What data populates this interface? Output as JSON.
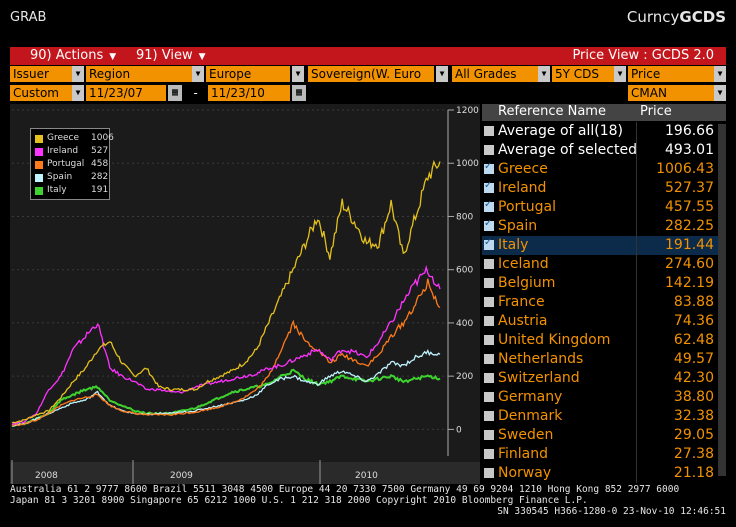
{
  "titlebar": {
    "left": "GRAB",
    "right_prefix": "Curncy",
    "right_brand": "GCDS"
  },
  "redbar": {
    "actions": "90) Actions",
    "view": "91) View",
    "price_view": "Price View : GCDS 2.0"
  },
  "filters": {
    "issuer": "Issuer",
    "region": "Region",
    "europe": "Europe",
    "sovereign": "Sovereign(W. Euro",
    "grades": "All Grades",
    "tenor": "5Y CDS",
    "price": "Price",
    "custom": "Custom",
    "date_from": "11/23/07",
    "dash": "-",
    "date_to": "11/23/10",
    "source": "CMAN"
  },
  "legend": [
    {
      "name": "Greece",
      "value": "1006",
      "color": "#e3c01c"
    },
    {
      "name": "Ireland",
      "value": "527",
      "color": "#ff33ff"
    },
    {
      "name": "Portugal",
      "value": "458",
      "color": "#ff7a1a"
    },
    {
      "name": "Spain",
      "value": "282",
      "color": "#bff4ff"
    },
    {
      "name": "Italy",
      "value": "191",
      "color": "#3ed32f"
    }
  ],
  "table": {
    "header_name": "Reference Name",
    "header_price": "Price",
    "rows": [
      {
        "name": "Average of all(18)",
        "price": "196.66",
        "checked": false,
        "color": "#ffffff"
      },
      {
        "name": "Average of selected",
        "price": "493.01",
        "checked": false,
        "color": "#ffffff"
      },
      {
        "name": "Greece",
        "price": "1006.43",
        "checked": true,
        "color": "#f39200"
      },
      {
        "name": "Ireland",
        "price": "527.37",
        "checked": true,
        "color": "#f39200"
      },
      {
        "name": "Portugal",
        "price": "457.55",
        "checked": true,
        "color": "#f39200"
      },
      {
        "name": "Spain",
        "price": "282.25",
        "checked": true,
        "color": "#f39200"
      },
      {
        "name": "Italy",
        "price": "191.44",
        "checked": true,
        "color": "#f39200",
        "selected": true
      },
      {
        "name": "Iceland",
        "price": "274.60",
        "checked": false,
        "color": "#f39200"
      },
      {
        "name": "Belgium",
        "price": "142.19",
        "checked": false,
        "color": "#f39200"
      },
      {
        "name": "France",
        "price": "83.88",
        "checked": false,
        "color": "#f39200"
      },
      {
        "name": "Austria",
        "price": "74.36",
        "checked": false,
        "color": "#f39200"
      },
      {
        "name": "United Kingdom",
        "price": "62.48",
        "checked": false,
        "color": "#f39200"
      },
      {
        "name": "Netherlands",
        "price": "49.57",
        "checked": false,
        "color": "#f39200"
      },
      {
        "name": "Switzerland",
        "price": "42.30",
        "checked": false,
        "color": "#f39200"
      },
      {
        "name": "Germany",
        "price": "38.80",
        "checked": false,
        "color": "#f39200"
      },
      {
        "name": "Denmark",
        "price": "32.38",
        "checked": false,
        "color": "#f39200"
      },
      {
        "name": "Sweden",
        "price": "29.05",
        "checked": false,
        "color": "#f39200"
      },
      {
        "name": "Finland",
        "price": "27.38",
        "checked": false,
        "color": "#f39200"
      },
      {
        "name": "Norway",
        "price": "21.18",
        "checked": false,
        "color": "#f39200"
      }
    ]
  },
  "footer": {
    "line1": "Australia 61 2 9777 8600 Brazil 5511 3048 4500 Europe 44 20 7330 7500 Germany 49 69 9204 1210 Hong Kong 852 2977 6000",
    "line2": "Japan 81 3 3201 8900       Singapore 65 6212 1000       U.S. 1 212 318 2000       Copyright 2010 Bloomberg Finance L.P.",
    "line3": "SN 330545 H366-1280-0 23-Nov-10 12:46:51"
  },
  "chart_data": {
    "type": "line",
    "x_ticks": [
      "2008",
      "2009",
      "2010"
    ],
    "y_ticks": [
      0,
      200,
      400,
      600,
      800,
      1000,
      1200
    ],
    "ylim": [
      -100,
      1200
    ],
    "grid": true,
    "legend_position": "top-left",
    "series": [
      {
        "name": "Greece",
        "color": "#e3c01c",
        "values": [
          25,
          35,
          55,
          70,
          120,
          180,
          230,
          300,
          330,
          250,
          200,
          230,
          160,
          150,
          150,
          150,
          180,
          200,
          220,
          250,
          300,
          400,
          500,
          600,
          700,
          800,
          650,
          850,
          780,
          700,
          700,
          850,
          650,
          800,
          950,
          1006
        ]
      },
      {
        "name": "Ireland",
        "color": "#ff33ff",
        "values": [
          20,
          30,
          60,
          150,
          200,
          300,
          350,
          400,
          230,
          200,
          180,
          150,
          150,
          140,
          140,
          160,
          170,
          180,
          190,
          200,
          210,
          230,
          240,
          260,
          280,
          300,
          260,
          300,
          290,
          270,
          330,
          400,
          480,
          550,
          600,
          527
        ]
      },
      {
        "name": "Portugal",
        "color": "#ff7a1a",
        "values": [
          15,
          20,
          35,
          60,
          90,
          110,
          120,
          130,
          90,
          70,
          60,
          55,
          55,
          55,
          60,
          65,
          75,
          85,
          100,
          120,
          150,
          200,
          300,
          400,
          330,
          300,
          250,
          280,
          260,
          240,
          280,
          350,
          400,
          470,
          550,
          458
        ]
      },
      {
        "name": "Spain",
        "color": "#bff4ff",
        "values": [
          15,
          20,
          40,
          60,
          80,
          100,
          110,
          140,
          90,
          70,
          60,
          55,
          60,
          60,
          65,
          70,
          80,
          90,
          100,
          110,
          130,
          170,
          190,
          200,
          180,
          170,
          200,
          220,
          200,
          180,
          210,
          250,
          240,
          270,
          290,
          282
        ]
      },
      {
        "name": "Italy",
        "color": "#3ed32f",
        "values": [
          15,
          20,
          40,
          60,
          110,
          130,
          150,
          160,
          110,
          90,
          70,
          60,
          60,
          60,
          70,
          80,
          100,
          120,
          140,
          150,
          160,
          170,
          200,
          220,
          190,
          170,
          180,
          200,
          190,
          180,
          190,
          200,
          180,
          190,
          200,
          191
        ]
      }
    ]
  }
}
